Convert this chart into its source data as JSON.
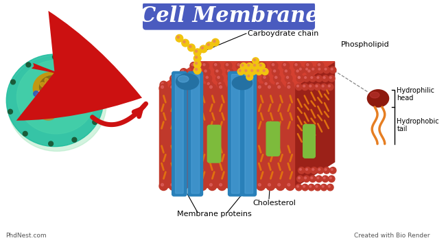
{
  "title": "Cell Membrane",
  "title_bg": "#4a5bbf",
  "title_color": "white",
  "title_fontsize": 22,
  "bg_color": "white",
  "labels": {
    "carbohydrate_chain": "Carboydrate chain",
    "phospholipid": "Phospholipid",
    "hydrophilic_head": "Hydrophilic\nhead",
    "hydrophobic_tail": "Hydrophobic\ntail",
    "cholesterol": "Cholesterol",
    "membrane_proteins": "Membrane proteins",
    "phdnest": "PhdNest.com",
    "bio_render": "Created with Bio Render"
  },
  "membrane_color": "#c0392b",
  "membrane_mid": "#a93226",
  "membrane_dark": "#8e1a0e",
  "protein_color": "#2980b9",
  "protein_light": "#5dade2",
  "cholesterol_color": "#7dbb3c",
  "carbohydrate_color": "#f1c40f",
  "phospholipid_head_color": "#8e1a0e",
  "phospholipid_tail_color": "#e67e22",
  "tail_orange": "#e07010",
  "label_fontsize": 8,
  "small_fontsize": 7
}
